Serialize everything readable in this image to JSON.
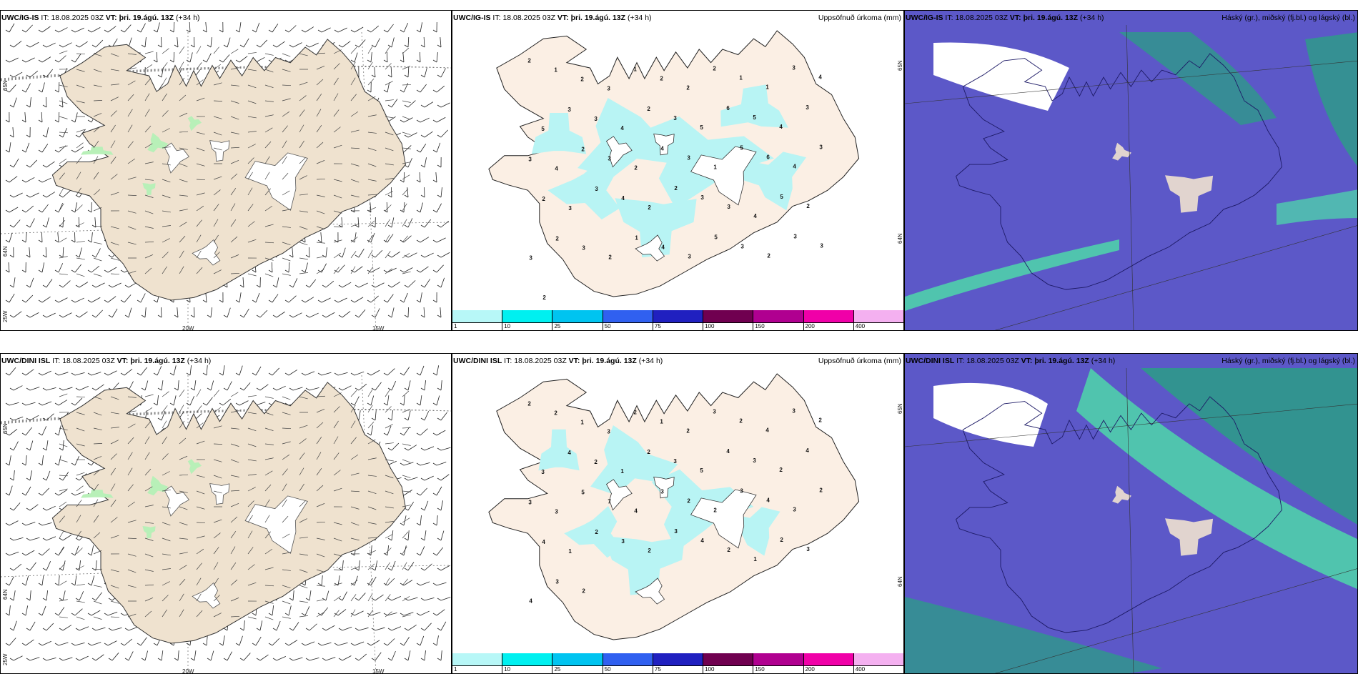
{
  "panels": [
    {
      "id": "p1",
      "model": "UWC/IG-IS",
      "it_label": "IT:",
      "it_value": "18.08.2025 03Z",
      "vt_label": "VT:",
      "vt_value": "þri. 19.ágú. 13Z",
      "lead": "(+34 h)",
      "right_title": "",
      "lat_labels": [
        "65N",
        "64N",
        "25W"
      ],
      "lon_labels": [
        "20W",
        "15W"
      ]
    },
    {
      "id": "p2",
      "model": "UWC/IG-IS",
      "it_label": "IT:",
      "it_value": "18.08.2025 03Z",
      "vt_label": "VT:",
      "vt_value": "þri. 19.ágú. 13Z",
      "lead": "(+34 h)",
      "right_title": "Uppsöfnuð úrkoma (mm)",
      "lat_labels": [
        "65N",
        "64N"
      ],
      "lon_labels": []
    },
    {
      "id": "p3",
      "model": "UWC/IG-IS",
      "it_label": "IT:",
      "it_value": "18.08.2025 03Z",
      "vt_label": "VT:",
      "vt_value": "þri. 19.ágú. 13Z",
      "lead": "(+34 h)",
      "right_title": "Háský (gr.), miðský (fj.bl.) og lágský (bl.)",
      "lat_labels": [],
      "lon_labels": []
    },
    {
      "id": "p4",
      "model": "UWC/DINI ISL",
      "it_label": "IT:",
      "it_value": "18.08.2025 03Z",
      "vt_label": "VT:",
      "vt_value": "þri. 19.ágú. 13Z",
      "lead": "(+34 h)",
      "right_title": "",
      "lat_labels": [
        "65N",
        "64N",
        "25W"
      ],
      "lon_labels": [
        "20W",
        "15W"
      ]
    },
    {
      "id": "p5",
      "model": "UWC/DINI ISL",
      "it_label": "IT:",
      "it_value": "18.08.2025 03Z",
      "vt_label": "VT:",
      "vt_value": "þri. 19.ágú. 13Z",
      "lead": "(+34 h)",
      "right_title": "Uppsöfnuð úrkoma (mm)",
      "lat_labels": [
        "65N",
        "64N"
      ],
      "lon_labels": []
    },
    {
      "id": "p6",
      "model": "UWC/DINI ISL",
      "it_label": "IT:",
      "it_value": "18.08.2025 03Z",
      "vt_label": "VT:",
      "vt_value": "þri. 19.ágú. 13Z",
      "lead": "(+34 h)",
      "right_title": "Háský (gr.), miðský (fj.bl.) og lágský (bl.)",
      "lat_labels": [],
      "lon_labels": []
    }
  ],
  "precip_legend": {
    "levels": [
      "1",
      "10",
      "25",
      "50",
      "75",
      "100",
      "150",
      "200",
      "400"
    ],
    "colors": [
      "#b7f7f7",
      "#00f0f0",
      "#00c4f0",
      "#3060f0",
      "#2020c0",
      "#700050",
      "#b00090",
      "#f000a8",
      "#f4b0f0"
    ]
  },
  "colors": {
    "land": "#efe2cf",
    "precip_land": "#fbefe4",
    "precip_light": "#b8f4f4",
    "cloud_low": "#5c58c8",
    "cloud_mid": "#2e9a8a",
    "cloud_high": "#4de0a8",
    "wind_green": "#b8f0b8"
  },
  "precip_numbers_ig": [
    "2",
    "1",
    "2",
    "3",
    "1",
    "2",
    "2",
    "2",
    "1",
    "1",
    "3",
    "4",
    "5",
    "3",
    "3",
    "4",
    "2",
    "3",
    "5",
    "6",
    "5",
    "4",
    "3",
    "3",
    "4",
    "2",
    "3",
    "2",
    "4",
    "3",
    "1",
    "5",
    "6",
    "4",
    "3",
    "2",
    "3",
    "3",
    "4",
    "2",
    "2",
    "3",
    "3",
    "4",
    "5",
    "2",
    "3",
    "2",
    "3",
    "2",
    "1",
    "4",
    "3",
    "5",
    "3",
    "2",
    "3",
    "3",
    "2"
  ],
  "precip_numbers_dini": [
    "2",
    "2",
    "1",
    "3",
    "2",
    "1",
    "2",
    "3",
    "2",
    "4",
    "3",
    "2",
    "3",
    "4",
    "2",
    "1",
    "2",
    "3",
    "5",
    "4",
    "3",
    "2",
    "4",
    "3",
    "3",
    "5",
    "7",
    "4",
    "3",
    "2",
    "2",
    "3",
    "4",
    "3",
    "2",
    "4",
    "1",
    "2",
    "3",
    "2",
    "3",
    "4",
    "2",
    "1",
    "2",
    "3",
    "4",
    "3",
    "2"
  ]
}
